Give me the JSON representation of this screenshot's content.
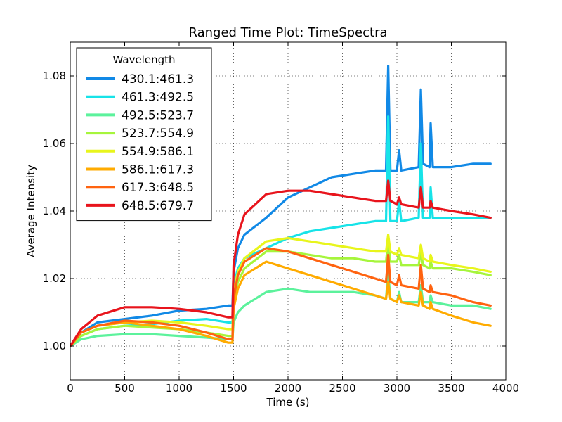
{
  "chart_data": {
    "type": "line",
    "title": "Ranged Time Plot: TimeSpectra",
    "xlabel": "Time (s)",
    "ylabel": "Average Intensity",
    "xlim": [
      0,
      4000
    ],
    "ylim": [
      0.99,
      1.09
    ],
    "xticks": [
      0,
      500,
      1000,
      1500,
      2000,
      2500,
      3000,
      3500,
      4000
    ],
    "yticks": [
      1.0,
      1.02,
      1.04,
      1.06,
      1.08
    ],
    "xtick_labels": [
      "0",
      "500",
      "1000",
      "1500",
      "2000",
      "2500",
      "3000",
      "3500",
      "4000"
    ],
    "ytick_labels": [
      "1.00",
      "1.02",
      "1.04",
      "1.06",
      "1.08"
    ],
    "grid": true,
    "legend_title": "Wavelength",
    "legend_position": "upper-left",
    "series": [
      {
        "name": "430.1:461.3",
        "color": "#1189e6",
        "points": [
          [
            0,
            1.0
          ],
          [
            100,
            1.004
          ],
          [
            250,
            1.007
          ],
          [
            500,
            1.008
          ],
          [
            750,
            1.009
          ],
          [
            1000,
            1.0105
          ],
          [
            1250,
            1.011
          ],
          [
            1450,
            1.012
          ],
          [
            1490,
            1.012
          ],
          [
            1500,
            1.022
          ],
          [
            1540,
            1.029
          ],
          [
            1600,
            1.033
          ],
          [
            1800,
            1.038
          ],
          [
            2000,
            1.044
          ],
          [
            2200,
            1.047
          ],
          [
            2400,
            1.05
          ],
          [
            2600,
            1.051
          ],
          [
            2800,
            1.052
          ],
          [
            2900,
            1.052
          ],
          [
            2920,
            1.083
          ],
          [
            2940,
            1.052
          ],
          [
            3000,
            1.052
          ],
          [
            3020,
            1.058
          ],
          [
            3040,
            1.052
          ],
          [
            3200,
            1.053
          ],
          [
            3220,
            1.076
          ],
          [
            3240,
            1.054
          ],
          [
            3300,
            1.053
          ],
          [
            3310,
            1.066
          ],
          [
            3330,
            1.053
          ],
          [
            3500,
            1.053
          ],
          [
            3700,
            1.054
          ],
          [
            3860,
            1.054
          ]
        ]
      },
      {
        "name": "461.3:492.5",
        "color": "#17e3e8",
        "points": [
          [
            0,
            1.0
          ],
          [
            100,
            1.003
          ],
          [
            250,
            1.005
          ],
          [
            500,
            1.006
          ],
          [
            750,
            1.0065
          ],
          [
            1000,
            1.0075
          ],
          [
            1250,
            1.008
          ],
          [
            1450,
            1.007
          ],
          [
            1490,
            1.007
          ],
          [
            1500,
            1.018
          ],
          [
            1540,
            1.023
          ],
          [
            1600,
            1.026
          ],
          [
            1800,
            1.029
          ],
          [
            2000,
            1.032
          ],
          [
            2200,
            1.034
          ],
          [
            2400,
            1.035
          ],
          [
            2600,
            1.036
          ],
          [
            2800,
            1.037
          ],
          [
            2900,
            1.037
          ],
          [
            2920,
            1.068
          ],
          [
            2940,
            1.037
          ],
          [
            3000,
            1.037
          ],
          [
            3020,
            1.043
          ],
          [
            3040,
            1.037
          ],
          [
            3200,
            1.038
          ],
          [
            3220,
            1.06
          ],
          [
            3240,
            1.038
          ],
          [
            3300,
            1.038
          ],
          [
            3310,
            1.047
          ],
          [
            3330,
            1.038
          ],
          [
            3500,
            1.038
          ],
          [
            3700,
            1.038
          ],
          [
            3860,
            1.038
          ]
        ]
      },
      {
        "name": "492.5:523.7",
        "color": "#5cf29c",
        "points": [
          [
            0,
            1.0
          ],
          [
            100,
            1.002
          ],
          [
            250,
            1.003
          ],
          [
            500,
            1.0035
          ],
          [
            750,
            1.0035
          ],
          [
            1000,
            1.003
          ],
          [
            1250,
            1.0025
          ],
          [
            1450,
            1.002
          ],
          [
            1490,
            1.002
          ],
          [
            1500,
            1.007
          ],
          [
            1540,
            1.01
          ],
          [
            1600,
            1.012
          ],
          [
            1800,
            1.016
          ],
          [
            2000,
            1.017
          ],
          [
            2200,
            1.016
          ],
          [
            2400,
            1.016
          ],
          [
            2600,
            1.016
          ],
          [
            2800,
            1.015
          ],
          [
            2900,
            1.014
          ],
          [
            2920,
            1.022
          ],
          [
            2940,
            1.014
          ],
          [
            3000,
            1.013
          ],
          [
            3020,
            1.016
          ],
          [
            3040,
            1.013
          ],
          [
            3200,
            1.013
          ],
          [
            3220,
            1.018
          ],
          [
            3240,
            1.013
          ],
          [
            3300,
            1.013
          ],
          [
            3310,
            1.015
          ],
          [
            3330,
            1.013
          ],
          [
            3500,
            1.012
          ],
          [
            3700,
            1.012
          ],
          [
            3860,
            1.011
          ]
        ]
      },
      {
        "name": "523.7:554.9",
        "color": "#a6f53c",
        "points": [
          [
            0,
            1.0
          ],
          [
            100,
            1.003
          ],
          [
            250,
            1.005
          ],
          [
            500,
            1.006
          ],
          [
            750,
            1.0055
          ],
          [
            1000,
            1.005
          ],
          [
            1250,
            1.004
          ],
          [
            1450,
            1.003
          ],
          [
            1490,
            1.003
          ],
          [
            1500,
            1.013
          ],
          [
            1540,
            1.019
          ],
          [
            1600,
            1.023
          ],
          [
            1800,
            1.028
          ],
          [
            2000,
            1.028
          ],
          [
            2200,
            1.027
          ],
          [
            2400,
            1.026
          ],
          [
            2600,
            1.026
          ],
          [
            2800,
            1.025
          ],
          [
            2900,
            1.025
          ],
          [
            2920,
            1.031
          ],
          [
            2940,
            1.025
          ],
          [
            3000,
            1.025
          ],
          [
            3020,
            1.027
          ],
          [
            3040,
            1.024
          ],
          [
            3200,
            1.024
          ],
          [
            3220,
            1.028
          ],
          [
            3240,
            1.024
          ],
          [
            3300,
            1.023
          ],
          [
            3310,
            1.025
          ],
          [
            3330,
            1.023
          ],
          [
            3500,
            1.023
          ],
          [
            3700,
            1.022
          ],
          [
            3860,
            1.021
          ]
        ]
      },
      {
        "name": "554.9:586.1",
        "color": "#e8f51c",
        "points": [
          [
            0,
            1.0
          ],
          [
            100,
            1.004
          ],
          [
            250,
            1.006
          ],
          [
            500,
            1.007
          ],
          [
            750,
            1.0075
          ],
          [
            1000,
            1.007
          ],
          [
            1250,
            1.006
          ],
          [
            1450,
            1.005
          ],
          [
            1490,
            1.005
          ],
          [
            1500,
            1.016
          ],
          [
            1540,
            1.022
          ],
          [
            1600,
            1.026
          ],
          [
            1800,
            1.031
          ],
          [
            2000,
            1.032
          ],
          [
            2200,
            1.031
          ],
          [
            2400,
            1.03
          ],
          [
            2600,
            1.029
          ],
          [
            2800,
            1.028
          ],
          [
            2900,
            1.028
          ],
          [
            2920,
            1.033
          ],
          [
            2940,
            1.028
          ],
          [
            3000,
            1.027
          ],
          [
            3020,
            1.029
          ],
          [
            3040,
            1.027
          ],
          [
            3200,
            1.026
          ],
          [
            3220,
            1.03
          ],
          [
            3240,
            1.026
          ],
          [
            3300,
            1.025
          ],
          [
            3310,
            1.027
          ],
          [
            3330,
            1.025
          ],
          [
            3500,
            1.024
          ],
          [
            3700,
            1.023
          ],
          [
            3860,
            1.022
          ]
        ]
      },
      {
        "name": "586.1:617.3",
        "color": "#ffab00",
        "points": [
          [
            0,
            1.0
          ],
          [
            100,
            1.004
          ],
          [
            250,
            1.006
          ],
          [
            500,
            1.007
          ],
          [
            750,
            1.006
          ],
          [
            1000,
            1.005
          ],
          [
            1250,
            1.003
          ],
          [
            1450,
            1.001
          ],
          [
            1490,
            1.001
          ],
          [
            1500,
            1.011
          ],
          [
            1540,
            1.017
          ],
          [
            1600,
            1.021
          ],
          [
            1800,
            1.025
          ],
          [
            2000,
            1.023
          ],
          [
            2200,
            1.021
          ],
          [
            2400,
            1.019
          ],
          [
            2600,
            1.017
          ],
          [
            2800,
            1.015
          ],
          [
            2900,
            1.014
          ],
          [
            2920,
            1.019
          ],
          [
            2940,
            1.014
          ],
          [
            3000,
            1.013
          ],
          [
            3020,
            1.015
          ],
          [
            3040,
            1.013
          ],
          [
            3200,
            1.012
          ],
          [
            3220,
            1.016
          ],
          [
            3240,
            1.012
          ],
          [
            3300,
            1.011
          ],
          [
            3310,
            1.013
          ],
          [
            3330,
            1.011
          ],
          [
            3500,
            1.009
          ],
          [
            3700,
            1.007
          ],
          [
            3860,
            1.006
          ]
        ]
      },
      {
        "name": "617.3:648.5",
        "color": "#ff6310",
        "points": [
          [
            0,
            1.0
          ],
          [
            100,
            1.004
          ],
          [
            250,
            1.006
          ],
          [
            500,
            1.0075
          ],
          [
            750,
            1.007
          ],
          [
            1000,
            1.006
          ],
          [
            1250,
            1.004
          ],
          [
            1450,
            1.002
          ],
          [
            1490,
            1.002
          ],
          [
            1500,
            1.014
          ],
          [
            1540,
            1.021
          ],
          [
            1600,
            1.025
          ],
          [
            1800,
            1.029
          ],
          [
            2000,
            1.028
          ],
          [
            2200,
            1.026
          ],
          [
            2400,
            1.024
          ],
          [
            2600,
            1.022
          ],
          [
            2800,
            1.02
          ],
          [
            2900,
            1.019
          ],
          [
            2920,
            1.027
          ],
          [
            2940,
            1.019
          ],
          [
            3000,
            1.018
          ],
          [
            3020,
            1.021
          ],
          [
            3040,
            1.018
          ],
          [
            3200,
            1.017
          ],
          [
            3220,
            1.024
          ],
          [
            3240,
            1.017
          ],
          [
            3300,
            1.016
          ],
          [
            3310,
            1.018
          ],
          [
            3330,
            1.016
          ],
          [
            3500,
            1.015
          ],
          [
            3700,
            1.013
          ],
          [
            3860,
            1.012
          ]
        ]
      },
      {
        "name": "648.5:679.7",
        "color": "#e8141c",
        "points": [
          [
            0,
            1.0
          ],
          [
            100,
            1.005
          ],
          [
            250,
            1.009
          ],
          [
            500,
            1.0115
          ],
          [
            750,
            1.0115
          ],
          [
            1000,
            1.011
          ],
          [
            1250,
            1.01
          ],
          [
            1450,
            1.0085
          ],
          [
            1490,
            1.0085
          ],
          [
            1500,
            1.024
          ],
          [
            1540,
            1.033
          ],
          [
            1600,
            1.039
          ],
          [
            1800,
            1.045
          ],
          [
            2000,
            1.046
          ],
          [
            2200,
            1.046
          ],
          [
            2400,
            1.045
          ],
          [
            2600,
            1.044
          ],
          [
            2800,
            1.043
          ],
          [
            2900,
            1.043
          ],
          [
            2920,
            1.049
          ],
          [
            2940,
            1.043
          ],
          [
            3000,
            1.042
          ],
          [
            3020,
            1.044
          ],
          [
            3040,
            1.042
          ],
          [
            3200,
            1.041
          ],
          [
            3220,
            1.047
          ],
          [
            3240,
            1.041
          ],
          [
            3300,
            1.041
          ],
          [
            3310,
            1.043
          ],
          [
            3330,
            1.041
          ],
          [
            3500,
            1.04
          ],
          [
            3700,
            1.039
          ],
          [
            3860,
            1.038
          ]
        ]
      }
    ]
  }
}
